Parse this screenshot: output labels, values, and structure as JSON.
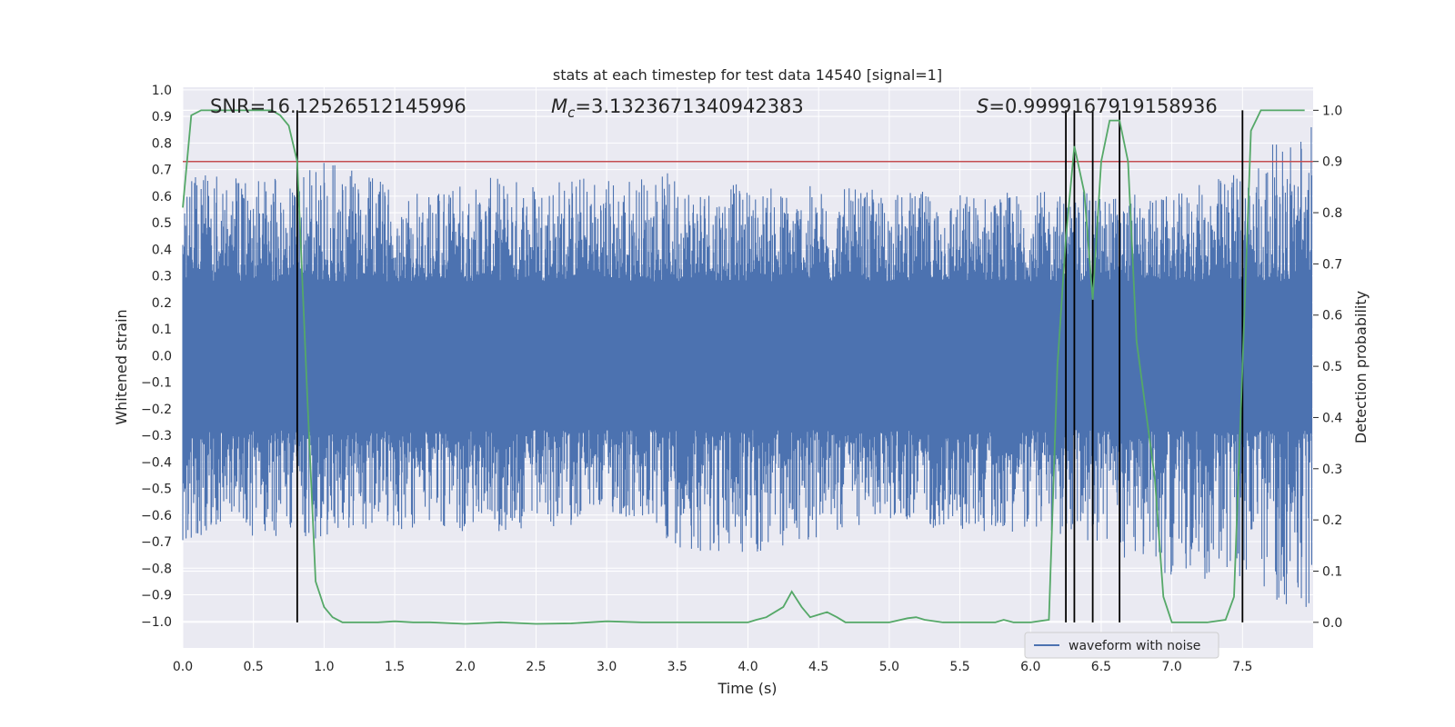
{
  "chart_data": {
    "type": "line",
    "title": "stats at each timestep for test data 14540 [signal=1]",
    "xlabel": "Time (s)",
    "ylabel": "Whitened strain",
    "ylabel_right": "Detection probability",
    "xlim": [
      0.0,
      8.0
    ],
    "ylim": [
      -1.1,
      1.01
    ],
    "ylim_right": [
      -0.05,
      1.045
    ],
    "xticks": [
      "0.0",
      "0.5",
      "1.0",
      "1.5",
      "2.0",
      "2.5",
      "3.0",
      "3.5",
      "4.0",
      "4.5",
      "5.0",
      "5.5",
      "6.0",
      "6.5",
      "7.0",
      "7.5"
    ],
    "yticks": [
      "1.0",
      "0.9",
      "0.8",
      "0.7",
      "0.6",
      "0.5",
      "0.4",
      "0.3",
      "0.2",
      "0.1",
      "0.0",
      "−0.1",
      "−0.2",
      "−0.3",
      "−0.4",
      "−0.5",
      "−0.6",
      "−0.7",
      "−0.8",
      "−0.9",
      "−1.0"
    ],
    "yticks_right": [
      "1.0",
      "0.9",
      "0.8",
      "0.7",
      "0.6",
      "0.5",
      "0.4",
      "0.3",
      "0.2",
      "0.1",
      "0.0"
    ],
    "annotations": {
      "snr": "SNR=16.12526512145996",
      "mc_sym": "M",
      "mc_sub": "c",
      "mc_val": "=3.1323671340942383",
      "s_sym": "S",
      "s_val": "=0.9999167919158936"
    },
    "legend": [
      {
        "label": "waveform with noise",
        "color": "#4c72b0"
      }
    ],
    "legend_position": "lower-right",
    "threshold": {
      "value": 0.9,
      "axis": "right",
      "color": "#c44e52"
    },
    "markers_x": [
      0.81,
      6.25,
      6.31,
      6.44,
      6.63,
      7.5
    ],
    "series": [
      {
        "name": "waveform with noise",
        "color": "#4c72b0",
        "axis": "left",
        "kind": "noise-envelope",
        "envelope_x": [
          0.0,
          0.5,
          1.0,
          1.5,
          2.0,
          2.5,
          3.0,
          3.5,
          4.0,
          4.5,
          5.0,
          5.5,
          6.0,
          6.5,
          7.0,
          7.5,
          7.99
        ],
        "envelope_upper": [
          0.72,
          0.66,
          0.74,
          0.64,
          0.66,
          0.69,
          0.69,
          0.69,
          0.64,
          0.64,
          0.62,
          0.62,
          0.62,
          0.62,
          0.6,
          0.72,
          0.9
        ],
        "envelope_lower": [
          -0.7,
          -0.68,
          -0.69,
          -0.66,
          -0.66,
          -0.68,
          -0.6,
          -0.72,
          -0.78,
          -0.69,
          -0.62,
          -0.67,
          -0.66,
          -0.73,
          -0.83,
          -0.86,
          -1.0
        ]
      },
      {
        "name": "detection probability",
        "color": "#55a868",
        "axis": "right",
        "x": [
          0.0,
          0.06,
          0.13,
          0.25,
          0.38,
          0.5,
          0.63,
          0.69,
          0.75,
          0.81,
          0.88,
          0.94,
          1.0,
          1.06,
          1.13,
          1.25,
          1.38,
          1.5,
          1.63,
          1.75,
          2.0,
          2.25,
          2.5,
          2.75,
          3.0,
          3.25,
          3.5,
          3.75,
          4.0,
          4.06,
          4.13,
          4.25,
          4.31,
          4.38,
          4.44,
          4.5,
          4.56,
          4.63,
          4.69,
          4.75,
          5.0,
          5.13,
          5.19,
          5.25,
          5.38,
          5.5,
          5.63,
          5.75,
          5.81,
          5.88,
          6.0,
          6.13,
          6.19,
          6.25,
          6.31,
          6.38,
          6.44,
          6.5,
          6.56,
          6.63,
          6.69,
          6.75,
          6.88,
          6.94,
          7.0,
          7.06,
          7.25,
          7.38,
          7.44,
          7.5,
          7.56,
          7.63,
          7.69,
          7.75,
          7.94
        ],
        "values": [
          0.81,
          0.99,
          1.0,
          1.0,
          1.0,
          1.0,
          1.0,
          0.99,
          0.97,
          0.9,
          0.45,
          0.08,
          0.03,
          0.01,
          0.0,
          0.0,
          0.0,
          0.002,
          0.0,
          0.0,
          -0.003,
          0.0,
          -0.003,
          -0.002,
          0.002,
          0.0,
          0.0,
          0.0,
          0.0,
          0.005,
          0.01,
          0.03,
          0.06,
          0.03,
          0.01,
          0.015,
          0.02,
          0.01,
          0.0,
          0.0,
          0.0,
          0.008,
          0.01,
          0.005,
          0.0,
          0.0,
          0.0,
          0.0,
          0.005,
          0.0,
          0.0,
          0.005,
          0.5,
          0.75,
          0.93,
          0.84,
          0.63,
          0.9,
          0.98,
          0.98,
          0.9,
          0.55,
          0.28,
          0.05,
          0.0,
          0.0,
          0.0,
          0.005,
          0.05,
          0.5,
          0.96,
          1.0,
          1.0,
          1.0,
          1.0
        ]
      }
    ]
  }
}
